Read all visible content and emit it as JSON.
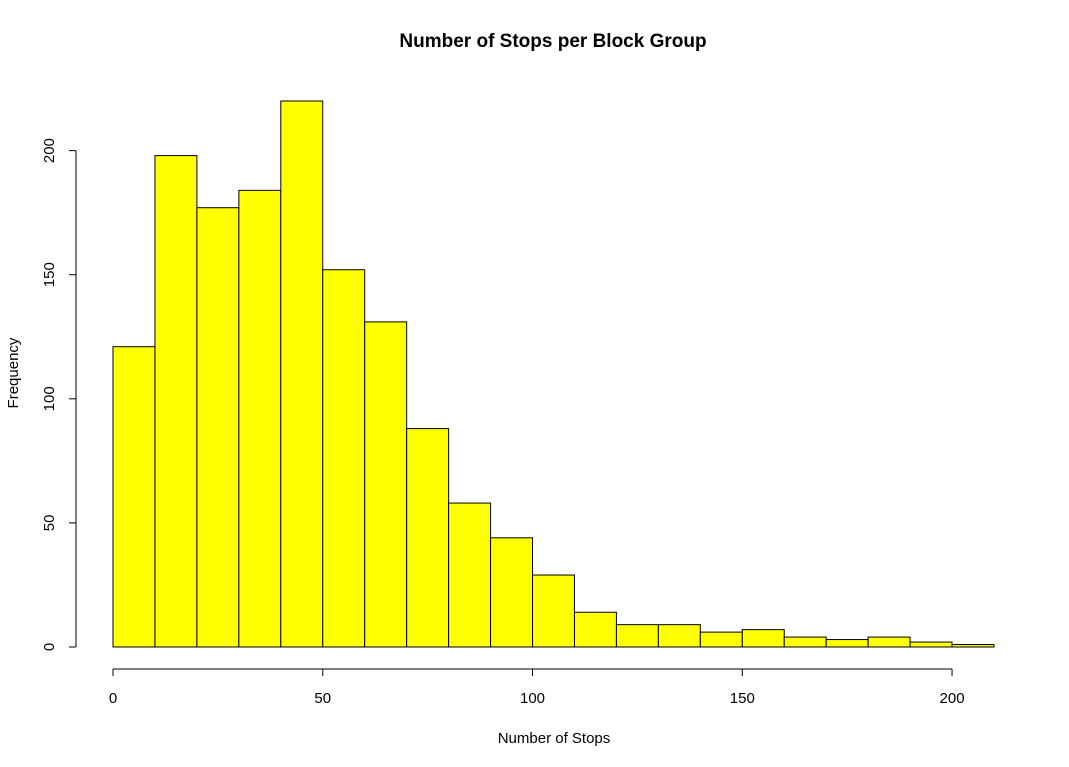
{
  "chart_data": {
    "type": "bar",
    "subtype": "histogram",
    "title": "Number of Stops per Block Group",
    "xlabel": "Number of Stops",
    "ylabel": "Frequency",
    "bin_edges": [
      0,
      10,
      20,
      30,
      40,
      50,
      60,
      70,
      80,
      90,
      100,
      110,
      120,
      130,
      140,
      150,
      160,
      170,
      180,
      190,
      200,
      210
    ],
    "values": [
      121,
      198,
      177,
      184,
      220,
      152,
      131,
      88,
      58,
      44,
      29,
      14,
      9,
      9,
      6,
      7,
      4,
      3,
      4,
      2,
      1
    ],
    "x_ticks": [
      0,
      50,
      100,
      150,
      200
    ],
    "y_ticks": [
      0,
      50,
      100,
      150,
      200
    ],
    "xlim": [
      0,
      210
    ],
    "ylim": [
      0,
      220
    ],
    "bar_color": "#ffff00",
    "grid": false,
    "legend": "none"
  }
}
